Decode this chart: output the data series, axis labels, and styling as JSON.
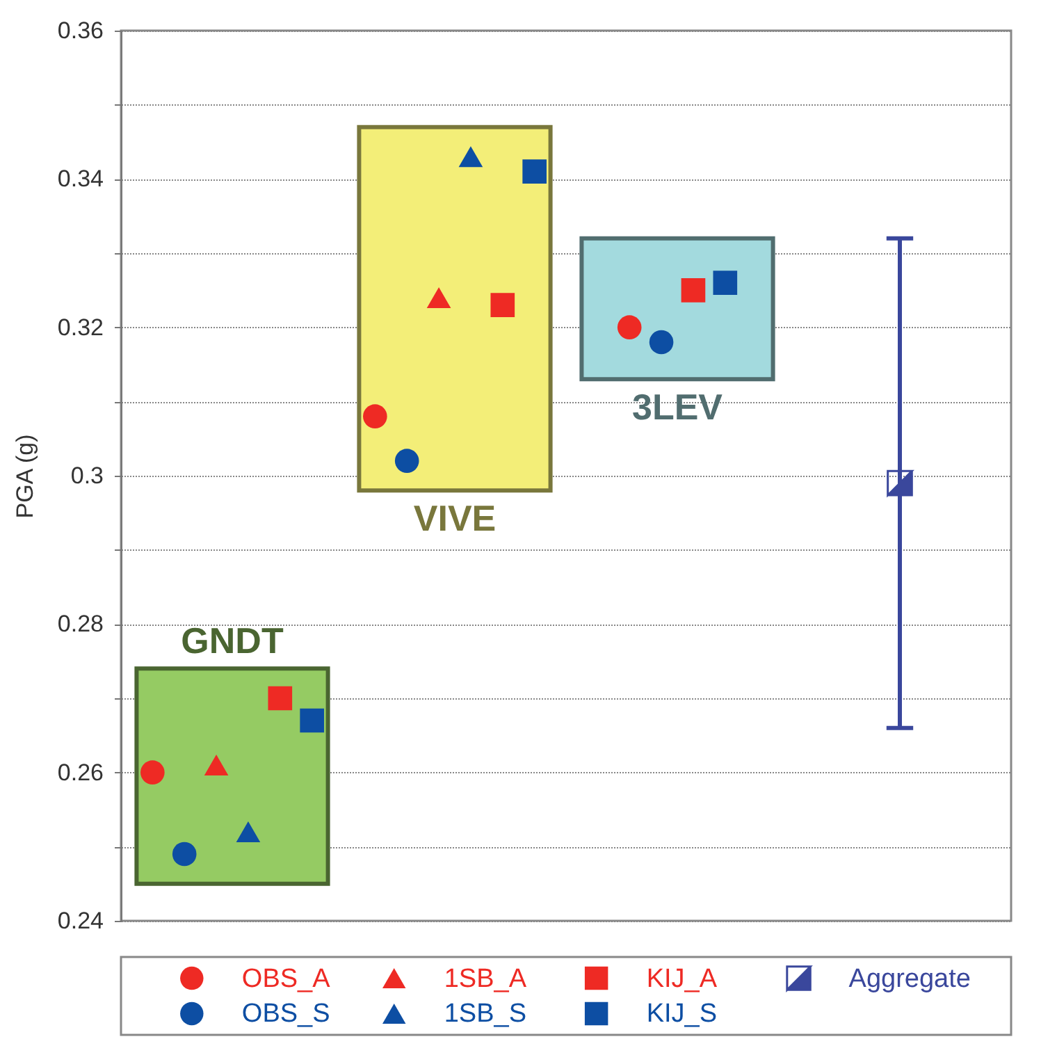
{
  "chart_data": {
    "type": "scatter",
    "ylabel": "PGA (g)",
    "categories": [
      "GNDT",
      "VIVE",
      "3LEV",
      null
    ],
    "ylim": [
      0.24,
      0.36
    ],
    "yticks": [
      0.24,
      {
        "value": 0.25,
        "label": null
      },
      0.26,
      {
        "value": 0.27,
        "label": null
      },
      0.28,
      {
        "value": 0.29,
        "label": null
      },
      0.3,
      {
        "value": 0.31,
        "label": null
      },
      0.32,
      {
        "value": 0.33,
        "label": null
      },
      0.34,
      {
        "value": 0.35,
        "label": null
      },
      0.36
    ],
    "grid": "y",
    "legend": "bottom",
    "tick_labels": "y",
    "series": [
      {
        "type": "bar",
        "colors": [
          "#95cb63",
          "#f3ee78",
          "#a3dade",
          null
        ],
        "base": [
          0.245,
          0.298,
          0.313,
          null
        ],
        "values": [
          0.029,
          0.049,
          0.019,
          null
        ]
      },
      {
        "name": "OBS_A",
        "marker": "circle",
        "color": "#ee2a24",
        "values": [
          0.26,
          0.308,
          0.32,
          null
        ]
      },
      {
        "name": "OBS_S",
        "marker": "circle",
        "color": "#0d4ea3",
        "values": [
          0.249,
          0.302,
          0.318,
          null
        ]
      },
      {
        "name": "1SB_A",
        "marker": "triangle",
        "color": "#ee2a24",
        "values": [
          0.261,
          0.324,
          null,
          null
        ]
      },
      {
        "name": "1SB_S",
        "marker": "triangle",
        "color": "#0d4ea3",
        "values": [
          0.252,
          0.343,
          null,
          null
        ]
      },
      {
        "name": "KIJ_A",
        "marker": "square",
        "color": "#ee2a24",
        "values": [
          0.27,
          0.323,
          0.325,
          null
        ]
      },
      {
        "name": "KIJ_S",
        "marker": "square",
        "color": "#0d4ea3",
        "values": [
          0.267,
          0.341,
          0.326,
          null
        ]
      },
      {
        "name": "Aggregate",
        "marker": "square",
        "color": "#3a479c",
        "values": [
          null,
          null,
          null,
          0.299
        ],
        "errors": [
          null,
          null,
          null,
          [
            0.266,
            0.332
          ]
        ]
      }
    ]
  }
}
